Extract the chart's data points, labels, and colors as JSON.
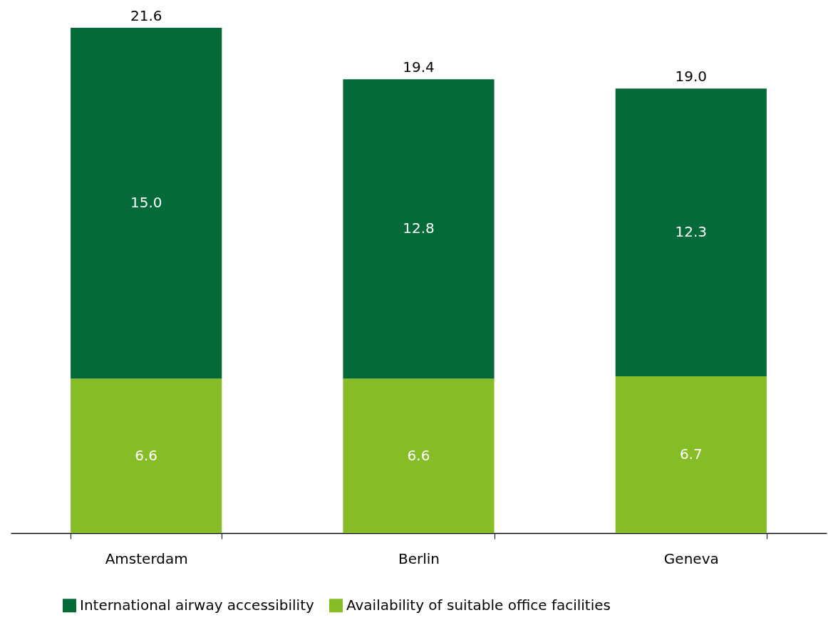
{
  "chart_data": {
    "type": "bar",
    "stacked": true,
    "categories": [
      "Amsterdam",
      "Berlin",
      "Geneva"
    ],
    "series": [
      {
        "name": "Availability of suitable office facilities",
        "color": "#86bc25",
        "values": [
          6.6,
          6.6,
          6.7
        ],
        "value_labels": [
          "6.6",
          "6.6",
          "6.7"
        ]
      },
      {
        "name": "International airway accessibility",
        "color": "#046a38",
        "values": [
          15.0,
          12.8,
          12.3
        ],
        "value_labels": [
          "15.0",
          "12.8",
          "12.3"
        ]
      }
    ],
    "totals": [
      "21.6",
      "19.4",
      "19.0"
    ],
    "legend": "bottom",
    "grid": false
  }
}
